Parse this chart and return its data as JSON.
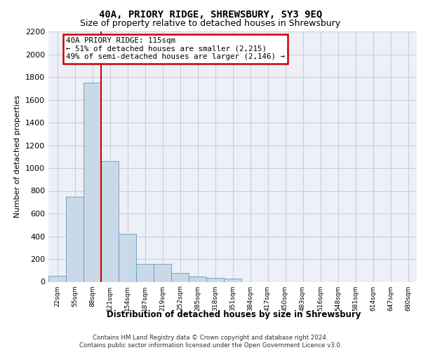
{
  "title": "40A, PRIORY RIDGE, SHREWSBURY, SY3 9EQ",
  "subtitle": "Size of property relative to detached houses in Shrewsbury",
  "xlabel": "Distribution of detached houses by size in Shrewsbury",
  "ylabel": "Number of detached properties",
  "footer_line1": "Contains HM Land Registry data © Crown copyright and database right 2024.",
  "footer_line2": "Contains public sector information licensed under the Open Government Licence v3.0.",
  "bin_labels": [
    "22sqm",
    "55sqm",
    "88sqm",
    "121sqm",
    "154sqm",
    "187sqm",
    "219sqm",
    "252sqm",
    "285sqm",
    "318sqm",
    "351sqm",
    "384sqm",
    "417sqm",
    "450sqm",
    "483sqm",
    "516sqm",
    "548sqm",
    "581sqm",
    "614sqm",
    "647sqm",
    "680sqm"
  ],
  "bar_values": [
    50,
    750,
    1750,
    1060,
    420,
    155,
    155,
    75,
    45,
    35,
    25,
    0,
    0,
    0,
    0,
    0,
    0,
    0,
    0,
    0,
    0
  ],
  "bar_color": "#c9d9e8",
  "bar_edge_color": "#6699bb",
  "vline_color": "#cc0000",
  "annotation_text": "40A PRIORY RIDGE: 115sqm\n← 51% of detached houses are smaller (2,215)\n49% of semi-detached houses are larger (2,146) →",
  "annotation_box_color": "#ffffff",
  "annotation_box_edge": "#cc0000",
  "ylim": [
    0,
    2200
  ],
  "yticks": [
    0,
    200,
    400,
    600,
    800,
    1000,
    1200,
    1400,
    1600,
    1800,
    2000,
    2200
  ],
  "grid_color": "#ccccdd",
  "plot_bg": "#eef0f8",
  "title_fontsize": 10,
  "subtitle_fontsize": 9
}
